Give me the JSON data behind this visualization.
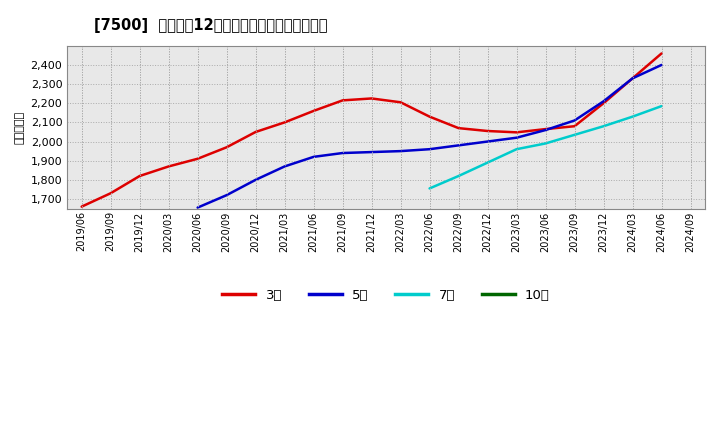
{
  "title": "[7500]  経常利益12か月移動合計の平均値の推移",
  "ylabel": "（百万円）",
  "background_color": "#ffffff",
  "plot_bg_color": "#e8e8e8",
  "grid_color": "#aaaaaa",
  "ylim": [
    1650,
    2500
  ],
  "yticks": [
    1700,
    1800,
    1900,
    2000,
    2100,
    2200,
    2300,
    2400
  ],
  "series": {
    "3年": {
      "color": "#dd0000",
      "x": [
        "2019/06",
        "2019/09",
        "2019/12",
        "2020/03",
        "2020/06",
        "2020/09",
        "2020/12",
        "2021/03",
        "2021/06",
        "2021/09",
        "2021/12",
        "2022/03",
        "2022/06",
        "2022/09",
        "2022/12",
        "2023/03",
        "2023/06",
        "2023/09",
        "2023/12",
        "2024/03",
        "2024/06"
      ],
      "y": [
        1660,
        1730,
        1820,
        1870,
        1910,
        1970,
        2050,
        2100,
        2160,
        2215,
        2225,
        2205,
        2130,
        2070,
        2055,
        2048,
        2065,
        2080,
        2200,
        2330,
        2460
      ]
    },
    "5年": {
      "color": "#0000cc",
      "x": [
        "2020/06",
        "2020/09",
        "2020/12",
        "2021/03",
        "2021/06",
        "2021/09",
        "2021/12",
        "2022/03",
        "2022/06",
        "2022/09",
        "2022/12",
        "2023/03",
        "2023/06",
        "2023/09",
        "2023/12",
        "2024/03",
        "2024/06"
      ],
      "y": [
        1655,
        1720,
        1800,
        1870,
        1920,
        1940,
        1945,
        1950,
        1960,
        1980,
        2000,
        2020,
        2060,
        2110,
        2210,
        2330,
        2400
      ]
    },
    "7年": {
      "color": "#00cccc",
      "x": [
        "2022/06",
        "2022/09",
        "2022/12",
        "2023/03",
        "2023/06",
        "2023/09",
        "2023/12",
        "2024/03",
        "2024/06"
      ],
      "y": [
        1755,
        1820,
        1890,
        1960,
        1990,
        2035,
        2080,
        2130,
        2185
      ]
    },
    "10年": {
      "color": "#006600",
      "x": [],
      "y": []
    }
  },
  "xticks": [
    "2019/06",
    "2019/09",
    "2019/12",
    "2020/03",
    "2020/06",
    "2020/09",
    "2020/12",
    "2021/03",
    "2021/06",
    "2021/09",
    "2021/12",
    "2022/03",
    "2022/06",
    "2022/09",
    "2022/12",
    "2023/03",
    "2023/06",
    "2023/09",
    "2023/12",
    "2024/03",
    "2024/06",
    "2024/09"
  ],
  "legend_labels": [
    "3年",
    "5年",
    "7年",
    "10年"
  ],
  "legend_colors": [
    "#dd0000",
    "#0000cc",
    "#00cccc",
    "#006600"
  ]
}
